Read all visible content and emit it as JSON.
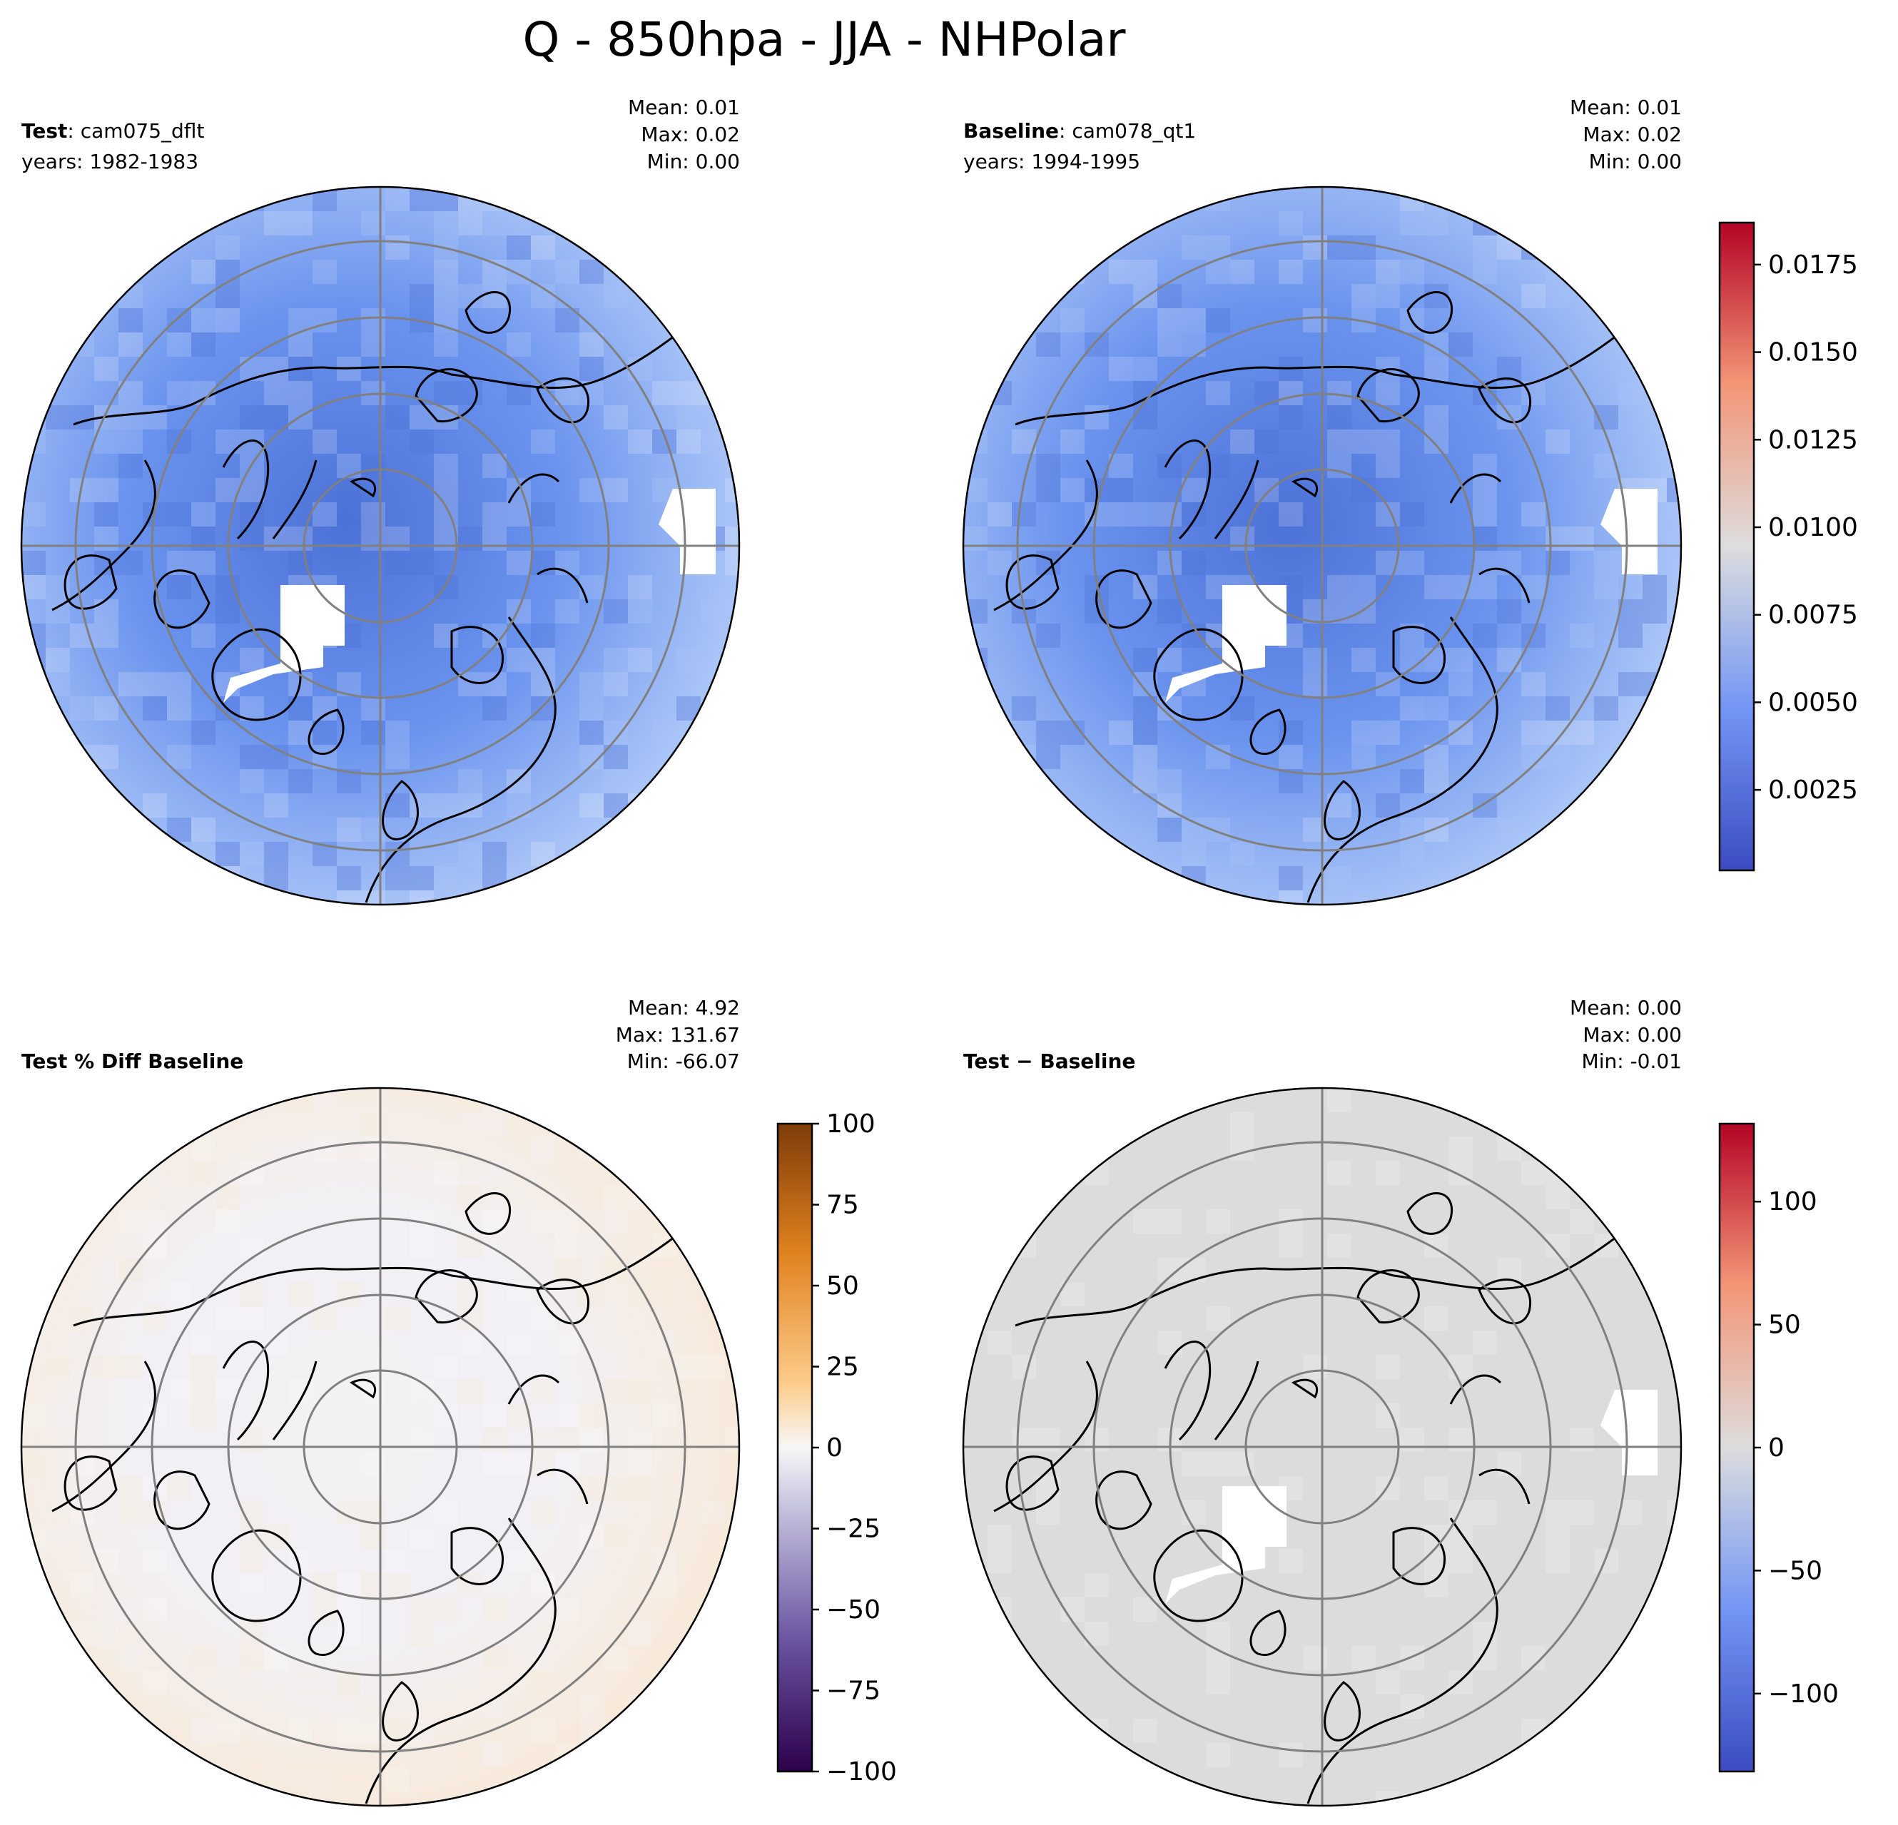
{
  "figure": {
    "title": "Q - 850hpa - JJA - NHPolar"
  },
  "panels": [
    {
      "id": "test",
      "label_bold": "Test",
      "label_rest": ": cam075_dflt",
      "years": "years: 1982-1983",
      "stats": {
        "mean": "Mean:  0.01",
        "max": "Max:  0.02",
        "min": "Min:  0.00"
      },
      "field_color": "#6a93ee",
      "center_color": "#4d72d8",
      "outer_color": "#a9c4f7"
    },
    {
      "id": "baseline",
      "label_bold": "Baseline",
      "label_rest": ": cam078_qt1",
      "years": "years: 1994-1995",
      "stats": {
        "mean": "Mean:  0.01",
        "max": "Max:  0.02",
        "min": "Min:  0.00"
      },
      "field_color": "#6a93ee",
      "center_color": "#4d72d8",
      "outer_color": "#a9c4f7"
    },
    {
      "id": "pctdiff",
      "label_bold": "Test % Diff Baseline",
      "label_rest": "",
      "years": "",
      "stats": {
        "mean": "Mean:  4.92",
        "max": "Max: 131.67",
        "min": "Min: -66.07"
      },
      "field_color": "#f2f0f4",
      "center_color": "#f3f1f3",
      "outer_color": "#f7eadb"
    },
    {
      "id": "diff",
      "label_bold": "Test",
      "label_rest": " − Baseline",
      "years": "",
      "stats": {
        "mean": "Mean:  0.00",
        "max": "Max:  0.00",
        "min": "Min: -0.01"
      },
      "field_color": "#dcdcdc",
      "center_color": "#dcdcdc",
      "outer_color": "#dcdcdc"
    }
  ],
  "colorbars": [
    {
      "id": "cb-q",
      "colormap": "coolwarm",
      "range": [
        0.0002,
        0.0187
      ],
      "ticks": [
        0.0025,
        0.005,
        0.0075,
        0.01,
        0.0125,
        0.015,
        0.0175
      ],
      "tick_labels": [
        "0.0025",
        "0.0050",
        "0.0075",
        "0.0100",
        "0.0125",
        "0.0150",
        "0.0175"
      ]
    },
    {
      "id": "cb-pct",
      "colormap": "PuOr_r",
      "range": [
        -100,
        100
      ],
      "ticks": [
        -100,
        -75,
        -50,
        -25,
        0,
        25,
        50,
        75,
        100
      ],
      "tick_labels": [
        "−100",
        "−75",
        "−50",
        "−25",
        "0",
        "25",
        "50",
        "75",
        "100"
      ]
    },
    {
      "id": "cb-diff",
      "colormap": "coolwarm",
      "range": [
        -131.67,
        131.67
      ],
      "ticks": [
        -100,
        -50,
        0,
        50,
        100
      ],
      "tick_labels": [
        "−100",
        "−50",
        "0",
        "50",
        "100"
      ]
    }
  ],
  "colors": {
    "coastline": "#000000",
    "gridline": "#808080",
    "missing": "#ffffff"
  }
}
